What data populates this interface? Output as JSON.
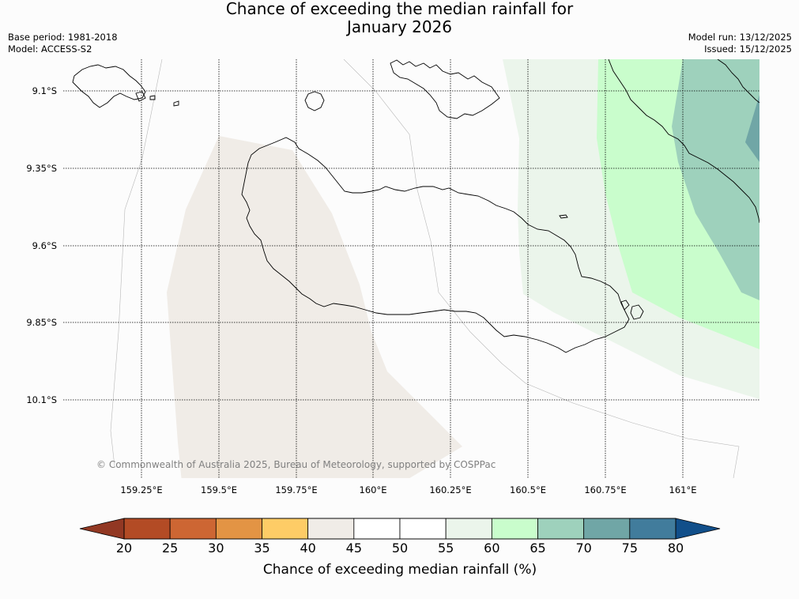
{
  "title": {
    "line1": "Chance of exceeding the median rainfall for",
    "line2": "January 2026"
  },
  "info": {
    "base_period": "Base period: 1981-2018",
    "model": "Model: ACCESS-S2",
    "model_run": "Model run: 13/12/2025",
    "issued": "Issued: 15/12/2025"
  },
  "map": {
    "lat_labels": [
      "9.1°S",
      "9.35°S",
      "9.6°S",
      "9.85°S",
      "10.1°S"
    ],
    "lon_labels": [
      "159.25°E",
      "159.5°E",
      "159.75°E",
      "160°E",
      "160.25°E",
      "160.5°E",
      "160.75°E",
      "161°E"
    ],
    "copyright": "© Commonwealth of Australia 2025, Bureau of Meteorology, supported by COSPPac"
  },
  "colorbar": {
    "label": "Chance of exceeding median rainfall (%)",
    "ticks": [
      "20",
      "25",
      "30",
      "35",
      "40",
      "45",
      "50",
      "55",
      "60",
      "65",
      "70",
      "75",
      "80"
    ],
    "colors": [
      "#b34b25",
      "#cd6633",
      "#e39444",
      "#fecc66",
      "#f0ece7",
      "#ffffff",
      "#ffffff",
      "#ebf5eb",
      "#c9fdcc",
      "#9ed1bc",
      "#70a6a6",
      "#417c9c"
    ],
    "under_color": "#923823",
    "over_color": "#114f8a"
  },
  "legend_colors": {
    "40-45": "#f0ece7",
    "55-60": "#ebf5eb",
    "60-65": "#c9fdcc",
    "65-70": "#9ed1bc",
    "70-75": "#70a6a6"
  }
}
